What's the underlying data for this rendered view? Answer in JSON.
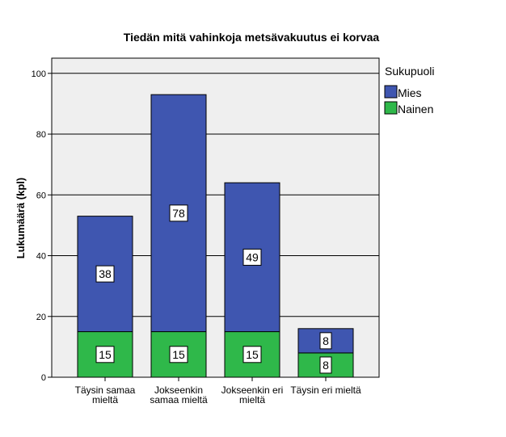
{
  "chart_data": {
    "type": "bar",
    "stacked": true,
    "title": "Tiedän mitä vahinkoja metsävakuutus ei korvaa",
    "xlabel": "",
    "ylabel": "Lukumäärä (kpl)",
    "ylim": [
      0,
      105
    ],
    "yticks": [
      0,
      20,
      40,
      60,
      80,
      100
    ],
    "grid": true,
    "legend_position": "right",
    "legend_title": "Sukupuoli",
    "categories": [
      [
        "Täysin samaa",
        "mieltä"
      ],
      [
        "Jokseenkin",
        "samaa mieltä"
      ],
      [
        "Jokseenkin eri",
        "mieltä"
      ],
      [
        "Täysin eri mieltä"
      ]
    ],
    "series": [
      {
        "name": "Nainen",
        "color": "#2fb84a",
        "values": [
          15,
          15,
          15,
          8
        ]
      },
      {
        "name": "Mies",
        "color": "#3f56b0",
        "values": [
          38,
          78,
          49,
          8
        ]
      }
    ],
    "legend_order": [
      "Mies",
      "Nainen"
    ],
    "plot_background": "#efefef"
  }
}
